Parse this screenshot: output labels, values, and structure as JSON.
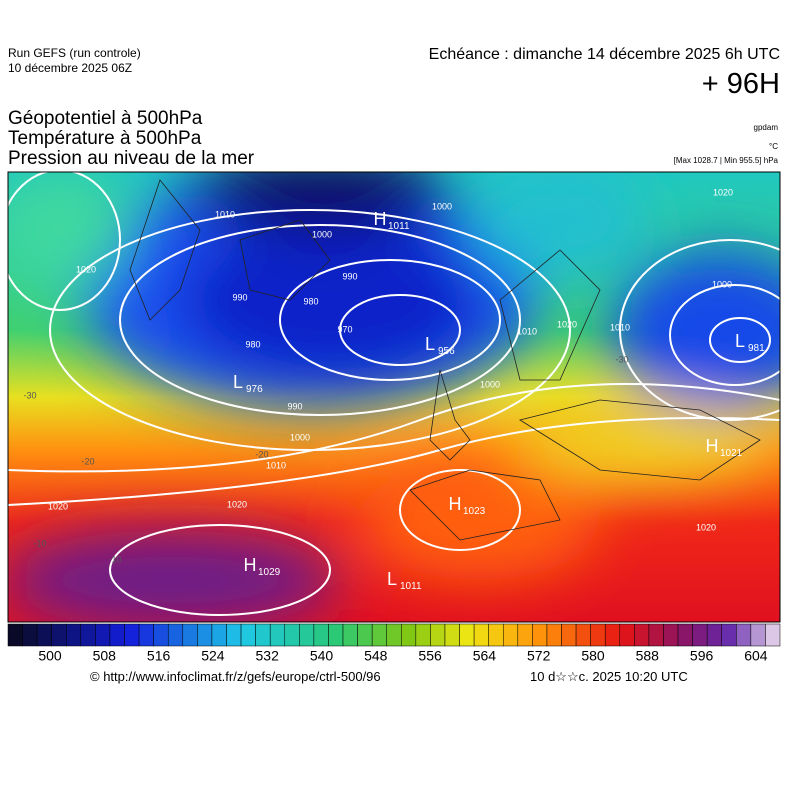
{
  "header": {
    "run": "Run GEFS (run controle)",
    "run_date": "10 décembre 2025 06Z",
    "echeance": "Echéance : dimanche 14 décembre 2025 6h UTC",
    "lead": "+ 96H",
    "fields": [
      "Géopotentiel à 500hPa",
      "Température à 500hPa",
      "Pression au niveau de la mer"
    ],
    "units": [
      "gpdam",
      "°C"
    ],
    "extremes": "[Max 1028.7 | Min 955.5] hPa"
  },
  "map": {
    "centers": [
      {
        "letter": "H",
        "value": 1011
      },
      {
        "letter": "L",
        "value": 956
      },
      {
        "letter": "L",
        "value": 976
      },
      {
        "letter": "L",
        "value": 981
      },
      {
        "letter": "H",
        "value": 1021
      },
      {
        "letter": "H",
        "value": 1023
      },
      {
        "letter": "H",
        "value": 1029
      },
      {
        "letter": "L",
        "value": 1011
      }
    ],
    "isobar_labels": [
      1010,
      1000,
      990,
      980,
      990,
      970,
      980,
      990,
      1000,
      1010,
      1020,
      1020,
      1020,
      1000,
      1010,
      1020,
      1000,
      1020,
      1000,
      1010,
      1020
    ],
    "isotherm_labels": [
      -20,
      -20,
      -10,
      -10,
      -30,
      -30
    ]
  },
  "colorbar": {
    "ticks": [
      500,
      508,
      516,
      524,
      532,
      540,
      548,
      556,
      564,
      572,
      580,
      588,
      596,
      604
    ]
  },
  "footer": {
    "url": "© http://www.infoclimat.fr/z/gefs/europe/ctrl-500/96",
    "generated": "10 d☆☆c. 2025 10:20 UTC"
  }
}
